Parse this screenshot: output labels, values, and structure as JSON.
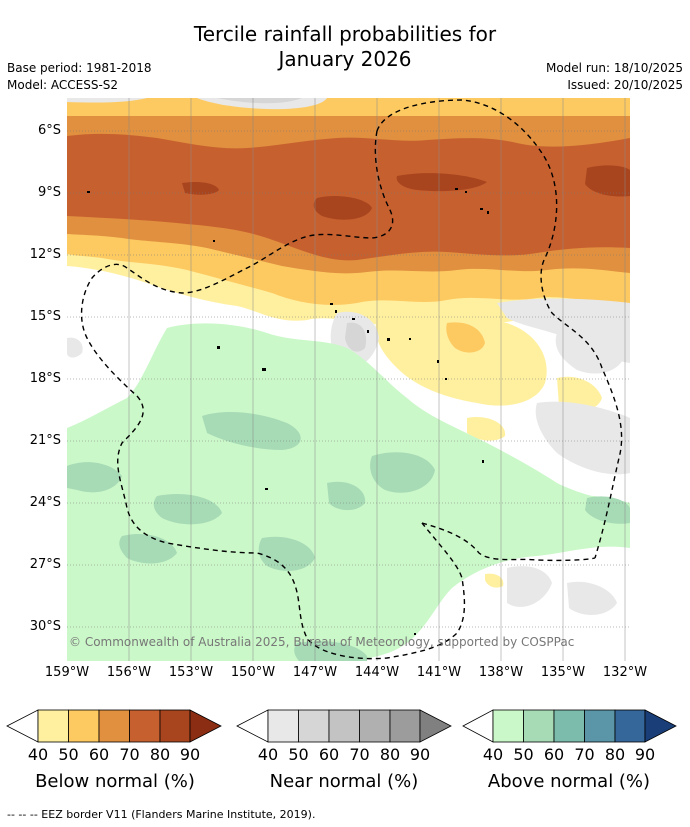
{
  "title_line1": "Tercile rainfall probabilities for",
  "title_line2": "January 2026",
  "meta": {
    "base_period": "Base period: 1981-2018",
    "model": "Model: ACCESS-S2",
    "model_run": "Model run: 18/10/2025",
    "issued": "Issued: 20/10/2025"
  },
  "map": {
    "copyright": "© Commonwealth of Australia 2025, Bureau of Meteorology, supported by COSPPac",
    "lat_labels": [
      "6°S",
      "9°S",
      "12°S",
      "15°S",
      "18°S",
      "21°S",
      "24°S",
      "27°S",
      "30°S"
    ],
    "lon_labels": [
      "159°W",
      "156°W",
      "153°W",
      "150°W",
      "147°W",
      "144°W",
      "141°W",
      "138°W",
      "135°W",
      "132°W"
    ]
  },
  "colorbars": [
    {
      "title": "Below normal (%)",
      "ticks": [
        "40",
        "50",
        "60",
        "70",
        "80",
        "90"
      ],
      "colors": [
        "#fff0a0",
        "#fdca62",
        "#e0903f",
        "#c7602f",
        "#a8451f",
        "#8b2d12"
      ]
    },
    {
      "title": "Near normal (%)",
      "ticks": [
        "40",
        "50",
        "60",
        "70",
        "80",
        "90"
      ],
      "colors": [
        "#e8e8e8",
        "#d6d6d6",
        "#c3c3c3",
        "#b0b0b0",
        "#9c9c9c",
        "#808080"
      ]
    },
    {
      "title": "Above normal (%)",
      "ticks": [
        "40",
        "50",
        "60",
        "70",
        "80",
        "90"
      ],
      "colors": [
        "#cbf8c9",
        "#a7dbb6",
        "#7bbcad",
        "#5a96a8",
        "#35679a",
        "#1a3f78"
      ]
    }
  ],
  "footnote": "--  --  -- EEZ border V11 (Flanders Marine Institute, 2019).",
  "colors": {
    "below_40": "#fff0a0",
    "below_50": "#fdca62",
    "below_60": "#e0903f",
    "below_70": "#c7602f",
    "below_80": "#a8451f",
    "near_40": "#e8e8e8",
    "near_50": "#d6d6d6",
    "above_40": "#cbf8c9",
    "above_50": "#a7dbb6"
  }
}
